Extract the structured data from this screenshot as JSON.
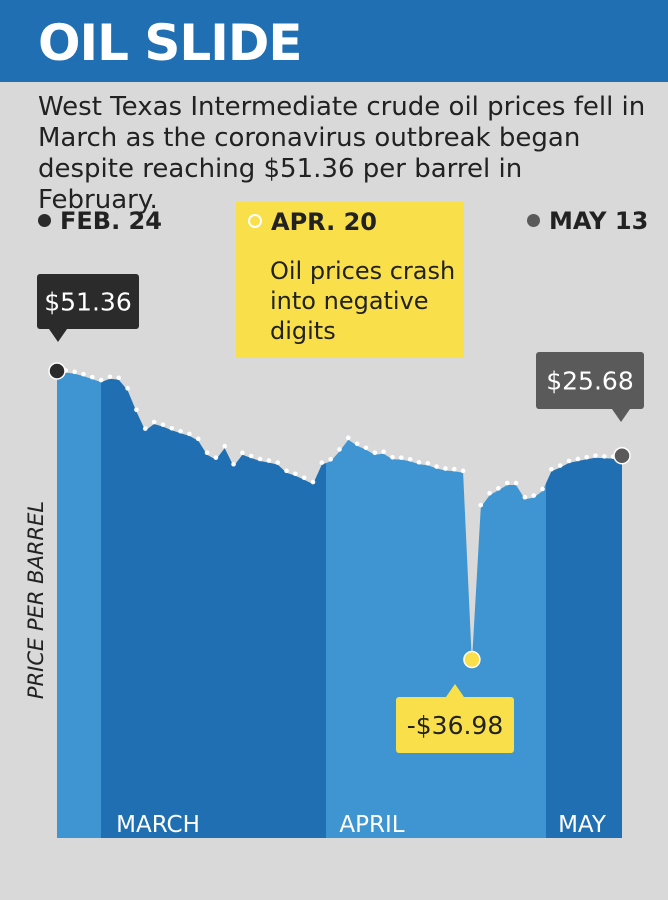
{
  "header": {
    "title": "OIL SLIDE"
  },
  "description": "West Texas Intermediate crude oil prices fell in March as the coronavirus outbreak began despite reaching $51.36 per barrel in February.",
  "legend": {
    "start": {
      "label": "FEB. 24",
      "color": "#2b2b2b"
    },
    "low": {
      "label": "APR. 20",
      "note": "Oil prices crash into negative digits",
      "color": "#f9e04a"
    },
    "end": {
      "label": "MAY 13",
      "color": "#5a5a5a"
    }
  },
  "chart_data": {
    "type": "area",
    "title": "OIL SLIDE",
    "ylabel": "PRICE PER BARREL",
    "xlabel": "",
    "months": [
      "MARCH",
      "APRIL",
      "MAY"
    ],
    "series": [
      {
        "values": [
          51.36,
          50.9,
          50.5,
          49.8,
          48.9,
          48.0,
          49.0,
          48.7,
          45.5,
          39.0,
          33.3,
          35.3,
          34.5,
          33.4,
          32.5,
          31.7,
          30.2,
          26.0,
          24.5,
          28.0,
          22.5,
          26.0,
          25.0,
          24.1,
          23.6,
          23.0,
          20.5,
          19.6,
          18.4,
          17.1,
          23.0,
          24.0,
          27.0,
          30.5,
          28.7,
          27.5,
          26.0,
          26.3,
          24.6,
          24.5,
          24.0,
          23.1,
          22.8,
          21.8,
          21.2,
          21.0,
          20.5,
          -36.98,
          10.1,
          13.7,
          15.2,
          16.8,
          16.8,
          12.5,
          13.0,
          15.0,
          21.0,
          22.1,
          23.5,
          24.1,
          24.6,
          25.1,
          24.9,
          24.8,
          25.68
        ],
        "color": "#1f6fb2"
      }
    ],
    "labels": {
      "start": "$51.36",
      "low": "-$36.98",
      "end": "$25.68"
    },
    "ylim": [
      -70,
      65
    ],
    "grid": false,
    "colors": {
      "light_area": "#3e95d1",
      "dark_area": "#1f6fb2",
      "dots": "#ffffff",
      "start_marker": "#2b2b2b",
      "low_marker": "#f9e04a",
      "end_marker": "#5a5a5a"
    }
  }
}
